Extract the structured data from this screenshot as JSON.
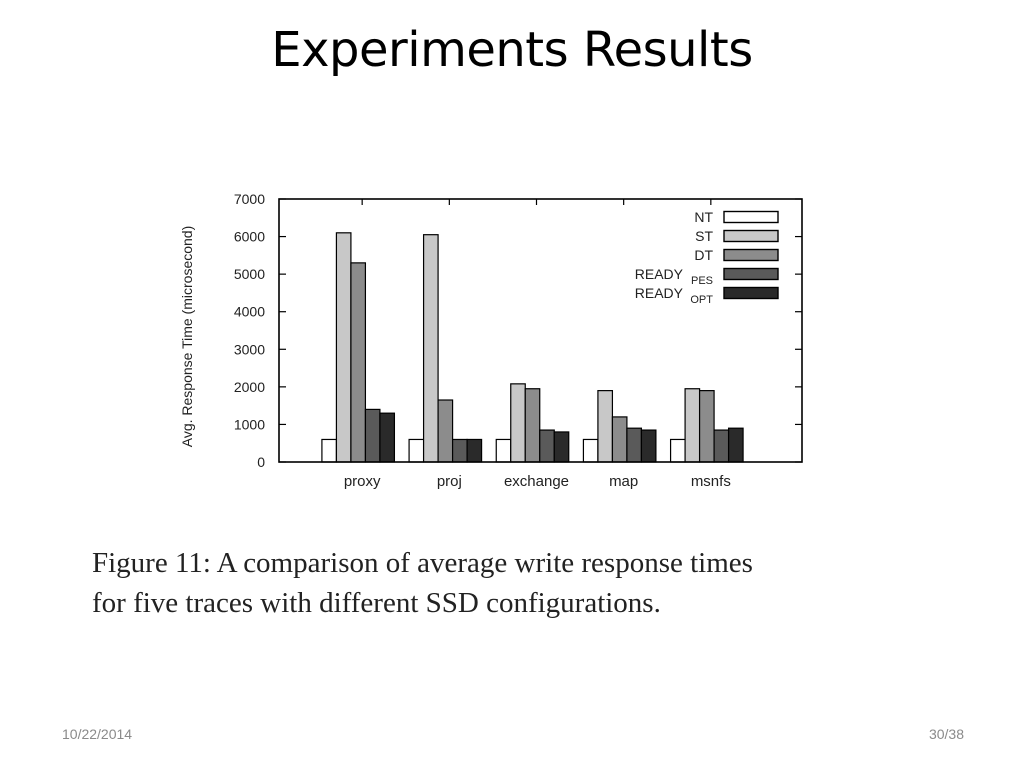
{
  "slide": {
    "title": "Experiments Results",
    "caption_line1": "Figure 11: A comparison of average write response times",
    "caption_line2": "for five traces with different SSD configurations.",
    "date": "10/22/2014",
    "page": "30/38"
  },
  "chart_data": {
    "type": "bar",
    "title": "",
    "xlabel": "",
    "ylabel": "Avg. Response Time (microsecond)",
    "ylim": [
      0,
      7000
    ],
    "yticks": [
      0,
      1000,
      2000,
      3000,
      4000,
      5000,
      6000,
      7000
    ],
    "categories": [
      "proxy",
      "proj",
      "exchange",
      "map",
      "msnfs"
    ],
    "legend_position": "top-right",
    "grid": false,
    "series": [
      {
        "name": "NT",
        "color": "#ffffff",
        "values": [
          600,
          600,
          600,
          600,
          600
        ]
      },
      {
        "name": "ST",
        "color": "#c8c8c8",
        "values": [
          6100,
          6050,
          2080,
          1900,
          1950
        ]
      },
      {
        "name": "DT",
        "color": "#8c8c8c",
        "values": [
          5300,
          1650,
          1950,
          1200,
          1900
        ]
      },
      {
        "name": "READY",
        "sub": "PES",
        "color": "#5a5a5a",
        "values": [
          1400,
          600,
          850,
          900,
          850
        ]
      },
      {
        "name": "READY",
        "sub": "OPT",
        "color": "#2a2a2a",
        "values": [
          1300,
          600,
          800,
          850,
          900
        ]
      }
    ]
  }
}
